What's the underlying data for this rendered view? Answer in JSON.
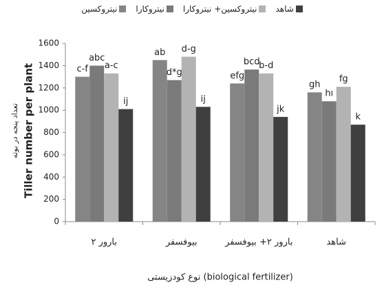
{
  "chart_data": {
    "type": "bar",
    "y_label": [
      "تعداد پنجه در بوته",
      "Tiller number per plant"
    ],
    "x_label": "نوع کودزیستی (biological fertilizer)",
    "categories": [
      "بارور ۲",
      "بیوفسفر",
      "بارور ۲+ بیوفسفر",
      "شاهد"
    ],
    "series": [
      {
        "name": "نیتروکسین",
        "color": "#858585",
        "values": [
          1300,
          1450,
          1240,
          1160
        ],
        "letters": [
          "c-f",
          "ab",
          "efg",
          "gh"
        ]
      },
      {
        "name": "نیتروکارا",
        "color": "#7a7a7a",
        "values": [
          1400,
          1270,
          1365,
          1080
        ],
        "letters": [
          "abc",
          "d*g",
          "bcd",
          "hı"
        ]
      },
      {
        "name": "نیتروکسین+ نیتروکارا",
        "color": "#b3b3b3",
        "values": [
          1330,
          1480,
          1330,
          1210
        ],
        "letters": [
          "a-c",
          "d-g",
          "b-d",
          "fg"
        ]
      },
      {
        "name": "شاهد",
        "color": "#3f3f3f",
        "values": [
          1010,
          1030,
          940,
          870
        ],
        "letters": [
          "ij",
          "ij",
          "jk",
          "k"
        ]
      }
    ],
    "ylim": [
      0,
      1600
    ],
    "yticks": [
      0,
      200,
      400,
      600,
      800,
      1000,
      1200,
      1400,
      1600
    ],
    "grid": false
  }
}
